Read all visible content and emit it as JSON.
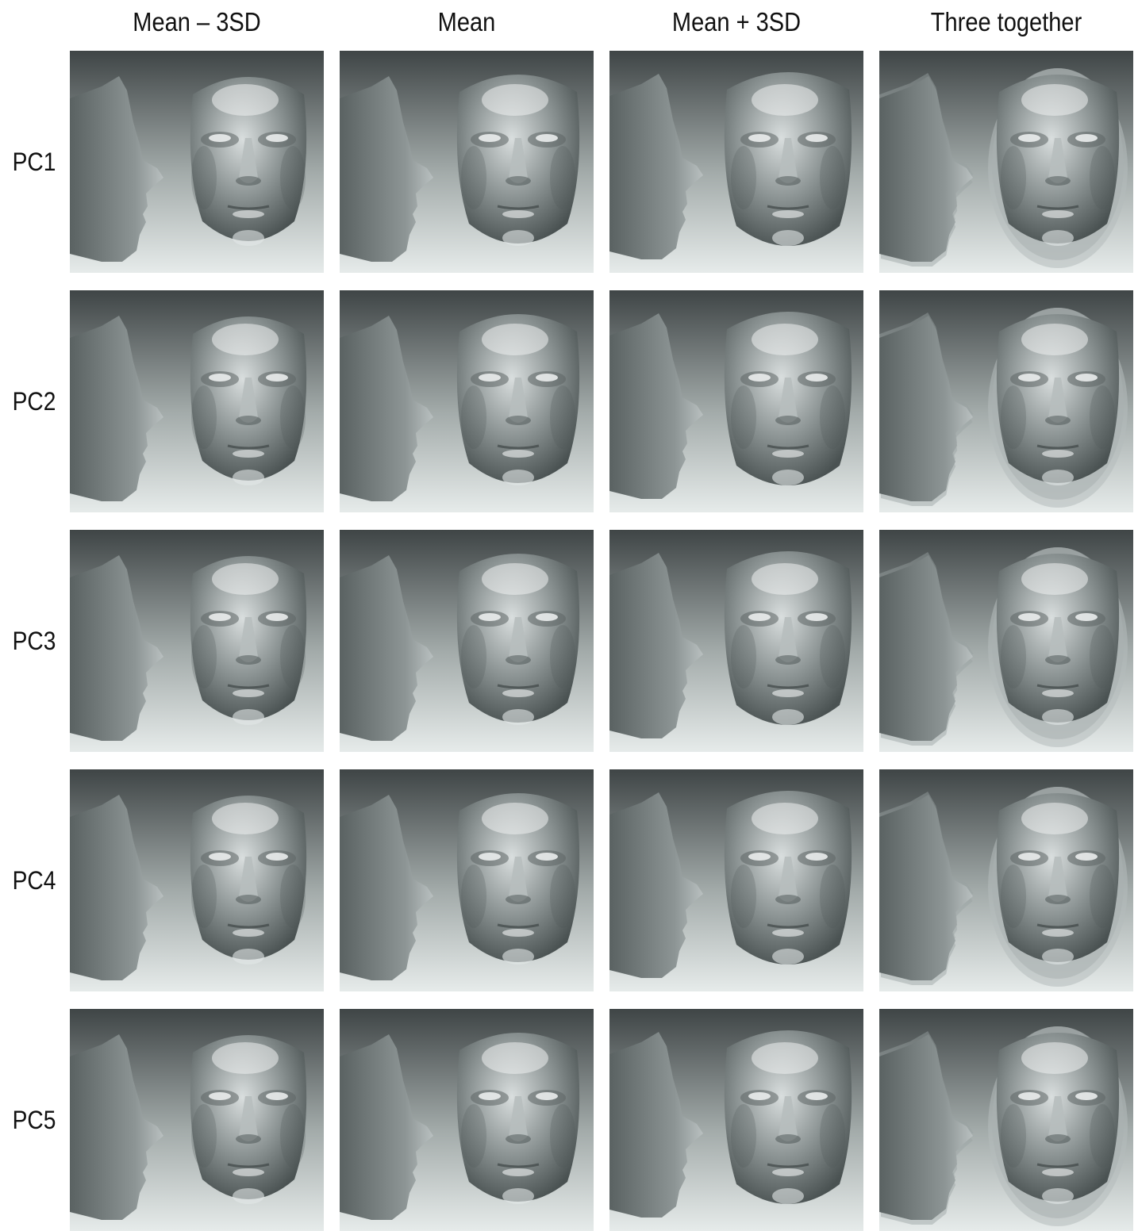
{
  "columns": [
    {
      "label": "Mean – 3SD",
      "variant": "minus"
    },
    {
      "label": "Mean",
      "variant": "mean"
    },
    {
      "label": "Mean + 3SD",
      "variant": "plus"
    },
    {
      "label": "Three together",
      "variant": "overlay"
    }
  ],
  "rows": [
    {
      "label": "PC1"
    },
    {
      "label": "PC2"
    },
    {
      "label": "PC3"
    },
    {
      "label": "PC4"
    },
    {
      "label": "PC5"
    }
  ],
  "colors": {
    "background_top": "#3f4546",
    "background_bottom": "#e6ebea",
    "face_light": "#d9dede",
    "face_mid": "#8a9292",
    "face_dark": "#4a5252",
    "text": "#111111"
  },
  "panel_content": {
    "left": "profile-view",
    "right": "frontal-view"
  }
}
